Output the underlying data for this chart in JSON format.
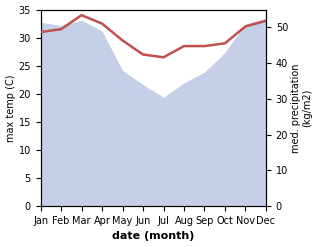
{
  "months": [
    "Jan",
    "Feb",
    "Mar",
    "Apr",
    "May",
    "Jun",
    "Jul",
    "Aug",
    "Sep",
    "Oct",
    "Nov",
    "Dec"
  ],
  "temp": [
    31.0,
    31.5,
    34.0,
    32.5,
    29.5,
    27.0,
    26.5,
    28.5,
    28.5,
    29.0,
    32.0,
    33.0
  ],
  "precip": [
    51.5,
    50.5,
    52.0,
    49.0,
    38.0,
    34.0,
    30.5,
    34.5,
    37.5,
    43.0,
    51.0,
    52.5
  ],
  "temp_color": "#c0504d",
  "precip_color": "#c5cfe8",
  "ylim_temp": [
    0,
    35
  ],
  "ylim_precip": [
    0,
    55
  ],
  "ylabel_left": "max temp (C)",
  "ylabel_right": "med. precipitation\n(kg/m2)",
  "xlabel": "date (month)",
  "temp_linewidth": 1.8,
  "bg_color": "#ffffff",
  "yticks_left": [
    0,
    5,
    10,
    15,
    20,
    25,
    30,
    35
  ],
  "yticks_right": [
    0,
    10,
    20,
    30,
    40,
    50
  ],
  "tick_fontsize": 7,
  "label_fontsize": 7,
  "xlabel_fontsize": 8
}
